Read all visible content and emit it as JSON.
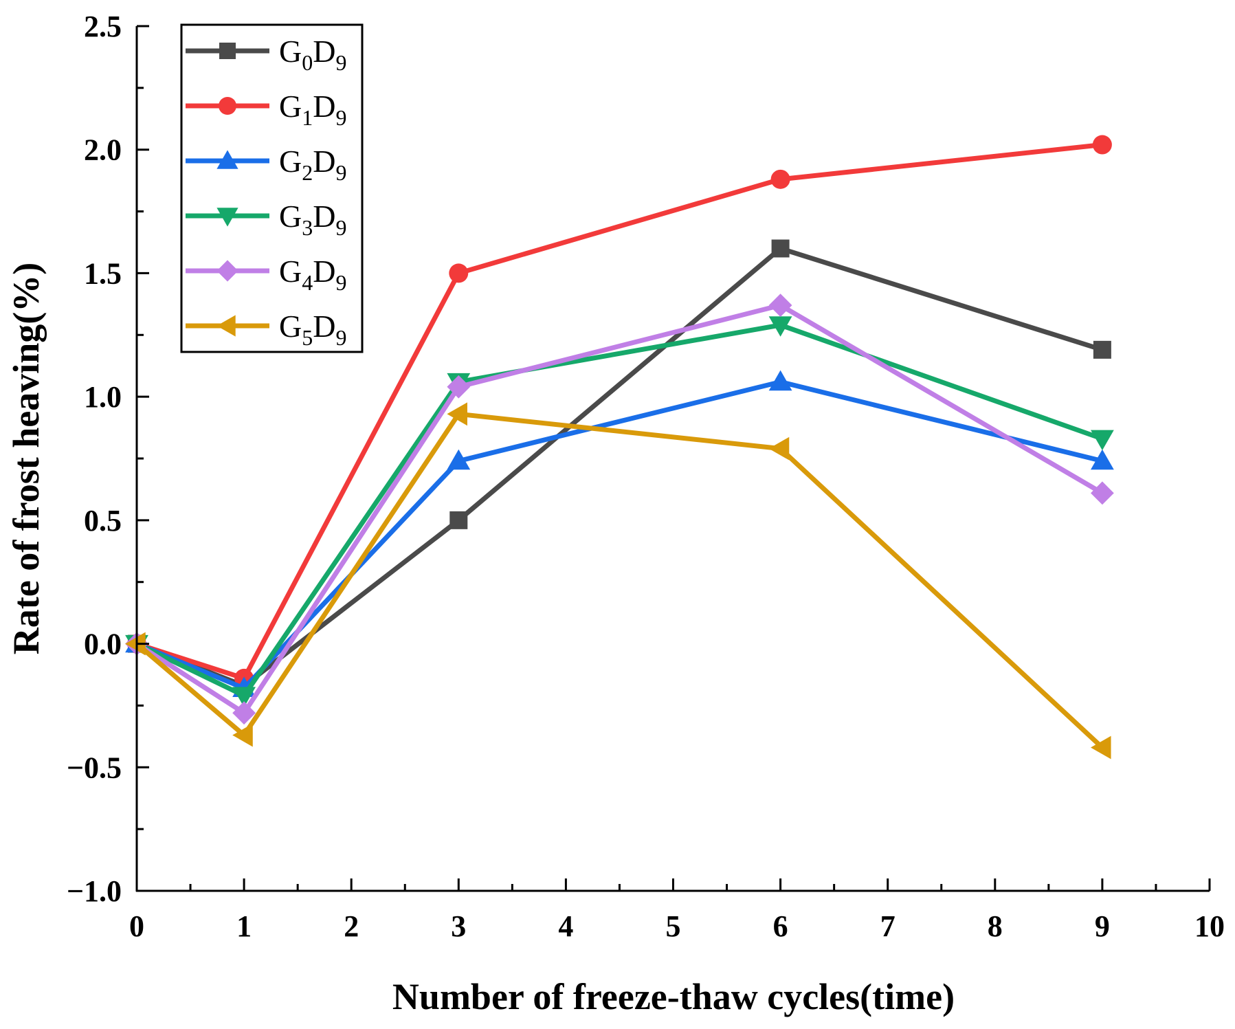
{
  "chart_data": {
    "type": "line",
    "title": "",
    "xlabel": "Number of freeze-thaw cycles(time)",
    "ylabel": "Rate of frost heaving(%)",
    "xlim": [
      0,
      10
    ],
    "ylim": [
      -1.0,
      2.5
    ],
    "xticks": [
      "0",
      "1",
      "2",
      "3",
      "4",
      "5",
      "6",
      "7",
      "8",
      "9",
      "10"
    ],
    "yticks": [
      "−1.0",
      "−0.5",
      "0.0",
      "0.5",
      "1.0",
      "1.5",
      "2.0",
      "2.5"
    ],
    "grid": false,
    "legend_position": "top-left",
    "x": [
      0,
      1,
      3,
      6,
      9
    ],
    "series": [
      {
        "name": "G0D9",
        "base": "G",
        "sub1": "0",
        "mid": "D",
        "sub2": "9",
        "color": "#4a4a4a",
        "marker": "square",
        "values": [
          0,
          -0.17,
          0.5,
          1.6,
          1.19
        ]
      },
      {
        "name": "G1D9",
        "base": "G",
        "sub1": "1",
        "mid": "D",
        "sub2": "9",
        "color": "#f23a3a",
        "marker": "circle",
        "values": [
          0,
          -0.14,
          1.5,
          1.88,
          2.02
        ]
      },
      {
        "name": "G2D9",
        "base": "G",
        "sub1": "2",
        "mid": "D",
        "sub2": "9",
        "color": "#1a6ee8",
        "marker": "triangle-up",
        "values": [
          0,
          -0.18,
          0.74,
          1.06,
          0.74
        ]
      },
      {
        "name": "G3D9",
        "base": "G",
        "sub1": "3",
        "mid": "D",
        "sub2": "9",
        "color": "#16a86a",
        "marker": "triangle-down",
        "values": [
          0,
          -0.21,
          1.06,
          1.29,
          0.83
        ]
      },
      {
        "name": "G4D9",
        "base": "G",
        "sub1": "4",
        "mid": "D",
        "sub2": "9",
        "color": "#c07fe6",
        "marker": "diamond",
        "values": [
          0,
          -0.28,
          1.04,
          1.37,
          0.61
        ]
      },
      {
        "name": "G5D9",
        "base": "G",
        "sub1": "5",
        "mid": "D",
        "sub2": "9",
        "color": "#d99a0a",
        "marker": "triangle-left",
        "values": [
          0,
          -0.37,
          0.93,
          0.79,
          -0.42
        ]
      }
    ]
  }
}
